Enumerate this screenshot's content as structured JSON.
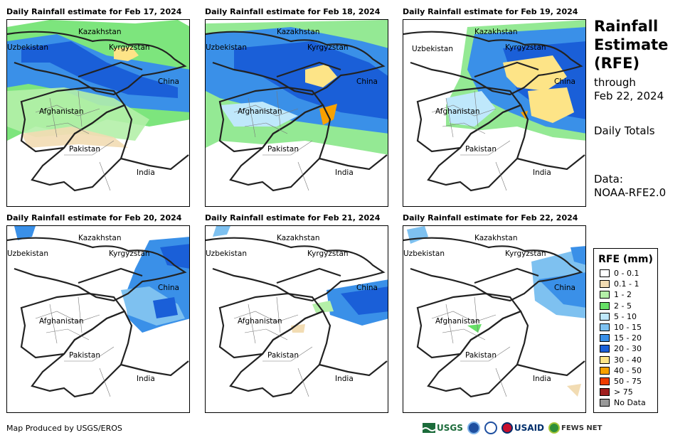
{
  "panels": [
    {
      "title": "Daily Rainfall estimate for Feb 17, 2024"
    },
    {
      "title": "Daily Rainfall estimate for Feb 18, 2024"
    },
    {
      "title": "Daily Rainfall estimate for Feb 19, 2024"
    },
    {
      "title": "Daily Rainfall estimate for Feb 20, 2024"
    },
    {
      "title": "Daily Rainfall estimate for Feb 21, 2024"
    },
    {
      "title": "Daily Rainfall estimate for Feb 22, 2024"
    }
  ],
  "map_labels": {
    "kazakhstan": "Kazakhstan",
    "uzbekistan": "Uzbekistan",
    "kyrgyzstan": "Kyrgyzstan",
    "china": "China",
    "afghanistan": "Afghanistan",
    "pakistan": "Pakistan",
    "india": "India"
  },
  "side": {
    "title_line1": "Rainfall",
    "title_line2": "Estimate",
    "title_line3": "(RFE)",
    "through": "through",
    "date": "Feb 22, 2024",
    "totals": "Daily Totals",
    "data_label": "Data:",
    "data_source": "NOAA-RFE2.0"
  },
  "legend": {
    "title": "RFE (mm)",
    "items": [
      {
        "label": "0 - 0.1",
        "color": "#ffffff"
      },
      {
        "label": "0.1 - 1",
        "color": "#f2dcb3"
      },
      {
        "label": "1 - 2",
        "color": "#b4f0a8"
      },
      {
        "label": "2 - 5",
        "color": "#66e066"
      },
      {
        "label": "5 - 10",
        "color": "#bfe8fb"
      },
      {
        "label": "10 - 15",
        "color": "#7ec1f0"
      },
      {
        "label": "15 - 20",
        "color": "#3a90e8"
      },
      {
        "label": "20 - 30",
        "color": "#1a5fd8"
      },
      {
        "label": "30 - 40",
        "color": "#fde487"
      },
      {
        "label": "40 - 50",
        "color": "#f8a100"
      },
      {
        "label": "50 - 75",
        "color": "#f03c00"
      },
      {
        "label": "> 75",
        "color": "#a01e1e"
      },
      {
        "label": "No Data",
        "color": "#999999"
      }
    ]
  },
  "footer": {
    "credit": "Map Produced by USGS/EROS",
    "logo_usgs": "USGS",
    "logo_usaid": "USAID",
    "logo_fews": "FEWS NET"
  }
}
